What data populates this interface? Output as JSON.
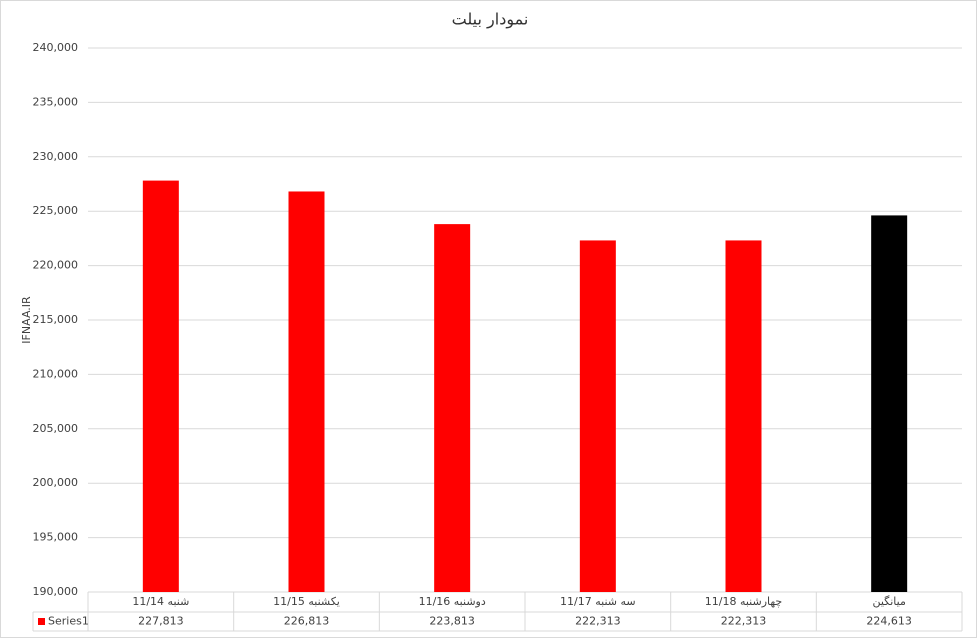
{
  "chart_data": {
    "type": "bar",
    "title": "نمودار بیلت",
    "y_label": "IFNAA.IR",
    "categories": [
      "شنبه 11/14",
      "یکشنبه 11/15",
      "دوشنبه 11/16",
      "سه شنبه 11/17",
      "چهارشنبه 11/18",
      "میانگین"
    ],
    "series": [
      {
        "name": "Series1",
        "color": "#ff0000",
        "bar_colors": [
          "#ff0000",
          "#ff0000",
          "#ff0000",
          "#ff0000",
          "#ff0000",
          "#000000"
        ],
        "values": [
          227813,
          226813,
          223813,
          222313,
          222313,
          224613
        ],
        "value_labels": [
          "227,813",
          "226,813",
          "223,813",
          "222,313",
          "222,313",
          "224,613"
        ]
      }
    ],
    "ylim": [
      190000,
      240000
    ],
    "yticks": [
      {
        "value": 190000,
        "label": "190,000"
      },
      {
        "value": 195000,
        "label": "195,000"
      },
      {
        "value": 200000,
        "label": "200,000"
      },
      {
        "value": 205000,
        "label": "205,000"
      },
      {
        "value": 210000,
        "label": "210,000"
      },
      {
        "value": 215000,
        "label": "215,000"
      },
      {
        "value": 220000,
        "label": "220,000"
      },
      {
        "value": 225000,
        "label": "225,000"
      },
      {
        "value": 230000,
        "label": "230,000"
      },
      {
        "value": 235000,
        "label": "235,000"
      },
      {
        "value": 240000,
        "label": "240,000"
      }
    ],
    "grid": true
  }
}
